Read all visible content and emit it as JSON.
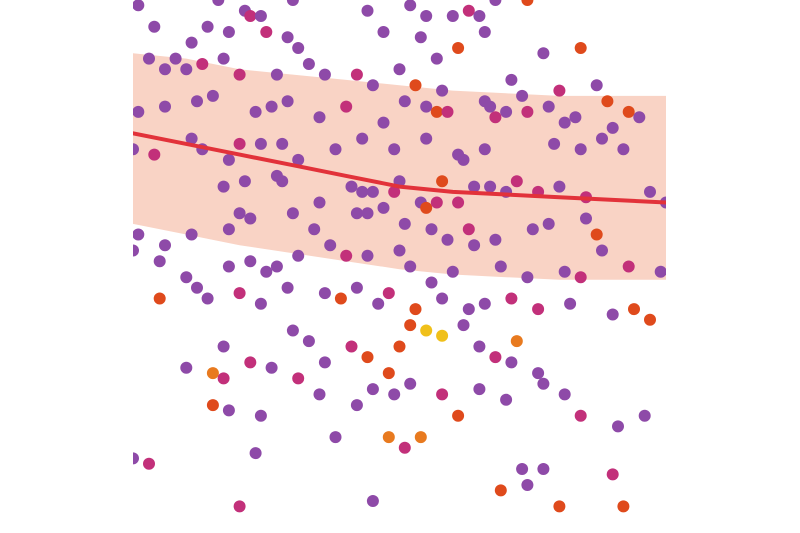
{
  "chart_data": {
    "type": "scatter",
    "title": "",
    "xlabel": "",
    "ylabel": "",
    "grid": false,
    "legend": "none",
    "xlim": [
      0,
      100
    ],
    "ylim": [
      0,
      100
    ],
    "colors": {
      "purple": "#8e4aa8",
      "magenta": "#c2307a",
      "orange_red": "#df4a1c",
      "orange": "#e87a1f",
      "yellow": "#f0c01a",
      "trend": "#e2323a",
      "band": "#f9d3c5"
    },
    "trend": {
      "x": [
        0,
        10,
        20,
        30,
        40,
        50,
        60,
        70,
        80,
        90,
        100
      ],
      "y": [
        75,
        73,
        71,
        69,
        67,
        65,
        64,
        63.5,
        63,
        62.5,
        62
      ]
    },
    "band": {
      "x": [
        0,
        10,
        20,
        30,
        40,
        50,
        60,
        70,
        80,
        90,
        100
      ],
      "upper": [
        90,
        89,
        87,
        86,
        85,
        84,
        83,
        82.5,
        82,
        82,
        82
      ],
      "lower": [
        58,
        56,
        54,
        52.5,
        51,
        49.5,
        48.5,
        48,
        47.5,
        47.5,
        47.5
      ]
    },
    "points": [
      {
        "x": 1,
        "y": 99,
        "c": "purple"
      },
      {
        "x": 16,
        "y": 100,
        "c": "purple"
      },
      {
        "x": 21,
        "y": 98,
        "c": "purple"
      },
      {
        "x": 22,
        "y": 97,
        "c": "magenta"
      },
      {
        "x": 24,
        "y": 97,
        "c": "purple"
      },
      {
        "x": 44,
        "y": 98,
        "c": "purple"
      },
      {
        "x": 52,
        "y": 99,
        "c": "purple"
      },
      {
        "x": 55,
        "y": 97,
        "c": "purple"
      },
      {
        "x": 60,
        "y": 97,
        "c": "purple"
      },
      {
        "x": 63,
        "y": 98,
        "c": "magenta"
      },
      {
        "x": 65,
        "y": 97,
        "c": "purple"
      },
      {
        "x": 68,
        "y": 100,
        "c": "purple"
      },
      {
        "x": 74,
        "y": 100,
        "c": "orange_red"
      },
      {
        "x": 30,
        "y": 100,
        "c": "purple"
      },
      {
        "x": 4,
        "y": 95,
        "c": "purple"
      },
      {
        "x": 11,
        "y": 92,
        "c": "purple"
      },
      {
        "x": 14,
        "y": 95,
        "c": "purple"
      },
      {
        "x": 18,
        "y": 94,
        "c": "purple"
      },
      {
        "x": 25,
        "y": 94,
        "c": "magenta"
      },
      {
        "x": 29,
        "y": 93,
        "c": "purple"
      },
      {
        "x": 31,
        "y": 91,
        "c": "purple"
      },
      {
        "x": 47,
        "y": 94,
        "c": "purple"
      },
      {
        "x": 54,
        "y": 93,
        "c": "purple"
      },
      {
        "x": 57,
        "y": 89,
        "c": "purple"
      },
      {
        "x": 61,
        "y": 91,
        "c": "orange_red"
      },
      {
        "x": 66,
        "y": 94,
        "c": "purple"
      },
      {
        "x": 77,
        "y": 90,
        "c": "purple"
      },
      {
        "x": 84,
        "y": 91,
        "c": "orange_red"
      },
      {
        "x": 3,
        "y": 89,
        "c": "purple"
      },
      {
        "x": 6,
        "y": 87,
        "c": "purple"
      },
      {
        "x": 8,
        "y": 89,
        "c": "purple"
      },
      {
        "x": 10,
        "y": 87,
        "c": "purple"
      },
      {
        "x": 13,
        "y": 88,
        "c": "magenta"
      },
      {
        "x": 17,
        "y": 89,
        "c": "purple"
      },
      {
        "x": 20,
        "y": 86,
        "c": "magenta"
      },
      {
        "x": 27,
        "y": 86,
        "c": "purple"
      },
      {
        "x": 33,
        "y": 88,
        "c": "purple"
      },
      {
        "x": 36,
        "y": 86,
        "c": "purple"
      },
      {
        "x": 42,
        "y": 86,
        "c": "magenta"
      },
      {
        "x": 45,
        "y": 84,
        "c": "purple"
      },
      {
        "x": 50,
        "y": 87,
        "c": "purple"
      },
      {
        "x": 53,
        "y": 84,
        "c": "orange_red"
      },
      {
        "x": 58,
        "y": 83,
        "c": "purple"
      },
      {
        "x": 71,
        "y": 85,
        "c": "purple"
      },
      {
        "x": 73,
        "y": 82,
        "c": "purple"
      },
      {
        "x": 80,
        "y": 83,
        "c": "magenta"
      },
      {
        "x": 87,
        "y": 84,
        "c": "purple"
      },
      {
        "x": 89,
        "y": 81,
        "c": "orange_red"
      },
      {
        "x": 1,
        "y": 79,
        "c": "purple"
      },
      {
        "x": 6,
        "y": 80,
        "c": "purple"
      },
      {
        "x": 12,
        "y": 81,
        "c": "purple"
      },
      {
        "x": 15,
        "y": 82,
        "c": "purple"
      },
      {
        "x": 23,
        "y": 79,
        "c": "purple"
      },
      {
        "x": 26,
        "y": 80,
        "c": "purple"
      },
      {
        "x": 29,
        "y": 81,
        "c": "purple"
      },
      {
        "x": 35,
        "y": 78,
        "c": "purple"
      },
      {
        "x": 40,
        "y": 80,
        "c": "magenta"
      },
      {
        "x": 47,
        "y": 77,
        "c": "purple"
      },
      {
        "x": 51,
        "y": 81,
        "c": "purple"
      },
      {
        "x": 55,
        "y": 80,
        "c": "purple"
      },
      {
        "x": 57,
        "y": 79,
        "c": "orange_red"
      },
      {
        "x": 59,
        "y": 79,
        "c": "magenta"
      },
      {
        "x": 66,
        "y": 81,
        "c": "purple"
      },
      {
        "x": 68,
        "y": 78,
        "c": "magenta"
      },
      {
        "x": 67,
        "y": 80,
        "c": "purple"
      },
      {
        "x": 70,
        "y": 79,
        "c": "purple"
      },
      {
        "x": 74,
        "y": 79,
        "c": "magenta"
      },
      {
        "x": 78,
        "y": 80,
        "c": "purple"
      },
      {
        "x": 81,
        "y": 77,
        "c": "purple"
      },
      {
        "x": 83,
        "y": 78,
        "c": "purple"
      },
      {
        "x": 90,
        "y": 76,
        "c": "purple"
      },
      {
        "x": 93,
        "y": 79,
        "c": "orange_red"
      },
      {
        "x": 0,
        "y": 72,
        "c": "purple"
      },
      {
        "x": 4,
        "y": 71,
        "c": "magenta"
      },
      {
        "x": 11,
        "y": 74,
        "c": "purple"
      },
      {
        "x": 13,
        "y": 72,
        "c": "purple"
      },
      {
        "x": 18,
        "y": 70,
        "c": "purple"
      },
      {
        "x": 20,
        "y": 73,
        "c": "magenta"
      },
      {
        "x": 24,
        "y": 73,
        "c": "purple"
      },
      {
        "x": 28,
        "y": 73,
        "c": "purple"
      },
      {
        "x": 31,
        "y": 70,
        "c": "purple"
      },
      {
        "x": 38,
        "y": 72,
        "c": "purple"
      },
      {
        "x": 43,
        "y": 74,
        "c": "purple"
      },
      {
        "x": 49,
        "y": 72,
        "c": "purple"
      },
      {
        "x": 55,
        "y": 74,
        "c": "purple"
      },
      {
        "x": 61,
        "y": 71,
        "c": "purple"
      },
      {
        "x": 62,
        "y": 70,
        "c": "purple"
      },
      {
        "x": 66,
        "y": 72,
        "c": "purple"
      },
      {
        "x": 79,
        "y": 73,
        "c": "purple"
      },
      {
        "x": 84,
        "y": 72,
        "c": "purple"
      },
      {
        "x": 88,
        "y": 74,
        "c": "purple"
      },
      {
        "x": 92,
        "y": 72,
        "c": "purple"
      },
      {
        "x": 95,
        "y": 78,
        "c": "purple"
      },
      {
        "x": 17,
        "y": 65,
        "c": "purple"
      },
      {
        "x": 21,
        "y": 66,
        "c": "purple"
      },
      {
        "x": 27,
        "y": 67,
        "c": "purple"
      },
      {
        "x": 28,
        "y": 66,
        "c": "purple"
      },
      {
        "x": 35,
        "y": 62,
        "c": "purple"
      },
      {
        "x": 41,
        "y": 65,
        "c": "purple"
      },
      {
        "x": 43,
        "y": 64,
        "c": "purple"
      },
      {
        "x": 45,
        "y": 64,
        "c": "purple"
      },
      {
        "x": 49,
        "y": 64,
        "c": "magenta"
      },
      {
        "x": 50,
        "y": 66,
        "c": "purple"
      },
      {
        "x": 54,
        "y": 62,
        "c": "purple"
      },
      {
        "x": 55,
        "y": 61,
        "c": "orange_red"
      },
      {
        "x": 57,
        "y": 62,
        "c": "magenta"
      },
      {
        "x": 58,
        "y": 66,
        "c": "orange_red"
      },
      {
        "x": 61,
        "y": 62,
        "c": "magenta"
      },
      {
        "x": 64,
        "y": 65,
        "c": "purple"
      },
      {
        "x": 67,
        "y": 65,
        "c": "purple"
      },
      {
        "x": 70,
        "y": 64,
        "c": "purple"
      },
      {
        "x": 72,
        "y": 66,
        "c": "magenta"
      },
      {
        "x": 76,
        "y": 64,
        "c": "magenta"
      },
      {
        "x": 80,
        "y": 65,
        "c": "purple"
      },
      {
        "x": 85,
        "y": 63,
        "c": "magenta"
      },
      {
        "x": 97,
        "y": 64,
        "c": "purple"
      },
      {
        "x": 100,
        "y": 62,
        "c": "purple"
      },
      {
        "x": 6,
        "y": 54,
        "c": "purple"
      },
      {
        "x": 11,
        "y": 56,
        "c": "purple"
      },
      {
        "x": 18,
        "y": 57,
        "c": "purple"
      },
      {
        "x": 20,
        "y": 60,
        "c": "purple"
      },
      {
        "x": 22,
        "y": 59,
        "c": "purple"
      },
      {
        "x": 30,
        "y": 60,
        "c": "purple"
      },
      {
        "x": 34,
        "y": 57,
        "c": "purple"
      },
      {
        "x": 42,
        "y": 60,
        "c": "purple"
      },
      {
        "x": 44,
        "y": 60,
        "c": "purple"
      },
      {
        "x": 47,
        "y": 61,
        "c": "purple"
      },
      {
        "x": 51,
        "y": 58,
        "c": "purple"
      },
      {
        "x": 56,
        "y": 57,
        "c": "purple"
      },
      {
        "x": 59,
        "y": 55,
        "c": "purple"
      },
      {
        "x": 63,
        "y": 57,
        "c": "magenta"
      },
      {
        "x": 68,
        "y": 55,
        "c": "purple"
      },
      {
        "x": 75,
        "y": 57,
        "c": "purple"
      },
      {
        "x": 78,
        "y": 58,
        "c": "purple"
      },
      {
        "x": 85,
        "y": 59,
        "c": "purple"
      },
      {
        "x": 87,
        "y": 56,
        "c": "orange_red"
      },
      {
        "x": 0,
        "y": 53,
        "c": "purple"
      },
      {
        "x": 1,
        "y": 56,
        "c": "purple"
      },
      {
        "x": 5,
        "y": 51,
        "c": "purple"
      },
      {
        "x": 10,
        "y": 48,
        "c": "purple"
      },
      {
        "x": 18,
        "y": 50,
        "c": "purple"
      },
      {
        "x": 22,
        "y": 51,
        "c": "purple"
      },
      {
        "x": 25,
        "y": 49,
        "c": "purple"
      },
      {
        "x": 27,
        "y": 50,
        "c": "purple"
      },
      {
        "x": 31,
        "y": 52,
        "c": "purple"
      },
      {
        "x": 37,
        "y": 54,
        "c": "purple"
      },
      {
        "x": 40,
        "y": 52,
        "c": "magenta"
      },
      {
        "x": 44,
        "y": 52,
        "c": "purple"
      },
      {
        "x": 50,
        "y": 53,
        "c": "purple"
      },
      {
        "x": 52,
        "y": 50,
        "c": "purple"
      },
      {
        "x": 56,
        "y": 47,
        "c": "purple"
      },
      {
        "x": 60,
        "y": 49,
        "c": "purple"
      },
      {
        "x": 64,
        "y": 54,
        "c": "purple"
      },
      {
        "x": 69,
        "y": 50,
        "c": "purple"
      },
      {
        "x": 74,
        "y": 48,
        "c": "purple"
      },
      {
        "x": 81,
        "y": 49,
        "c": "purple"
      },
      {
        "x": 84,
        "y": 48,
        "c": "magenta"
      },
      {
        "x": 88,
        "y": 53,
        "c": "purple"
      },
      {
        "x": 93,
        "y": 50,
        "c": "magenta"
      },
      {
        "x": 99,
        "y": 49,
        "c": "purple"
      },
      {
        "x": 5,
        "y": 44,
        "c": "orange_red"
      },
      {
        "x": 12,
        "y": 46,
        "c": "purple"
      },
      {
        "x": 14,
        "y": 44,
        "c": "purple"
      },
      {
        "x": 20,
        "y": 45,
        "c": "magenta"
      },
      {
        "x": 24,
        "y": 43,
        "c": "purple"
      },
      {
        "x": 29,
        "y": 46,
        "c": "purple"
      },
      {
        "x": 36,
        "y": 45,
        "c": "purple"
      },
      {
        "x": 39,
        "y": 44,
        "c": "orange_red"
      },
      {
        "x": 42,
        "y": 46,
        "c": "purple"
      },
      {
        "x": 46,
        "y": 43,
        "c": "purple"
      },
      {
        "x": 48,
        "y": 45,
        "c": "magenta"
      },
      {
        "x": 53,
        "y": 42,
        "c": "orange_red"
      },
      {
        "x": 58,
        "y": 44,
        "c": "purple"
      },
      {
        "x": 63,
        "y": 42,
        "c": "purple"
      },
      {
        "x": 66,
        "y": 43,
        "c": "purple"
      },
      {
        "x": 71,
        "y": 44,
        "c": "magenta"
      },
      {
        "x": 76,
        "y": 42,
        "c": "magenta"
      },
      {
        "x": 82,
        "y": 43,
        "c": "purple"
      },
      {
        "x": 90,
        "y": 41,
        "c": "purple"
      },
      {
        "x": 94,
        "y": 42,
        "c": "orange_red"
      },
      {
        "x": 97,
        "y": 40,
        "c": "orange_red"
      },
      {
        "x": 17,
        "y": 35,
        "c": "purple"
      },
      {
        "x": 22,
        "y": 32,
        "c": "magenta"
      },
      {
        "x": 30,
        "y": 38,
        "c": "purple"
      },
      {
        "x": 33,
        "y": 36,
        "c": "purple"
      },
      {
        "x": 36,
        "y": 32,
        "c": "purple"
      },
      {
        "x": 41,
        "y": 35,
        "c": "magenta"
      },
      {
        "x": 44,
        "y": 33,
        "c": "orange_red"
      },
      {
        "x": 48,
        "y": 30,
        "c": "orange_red"
      },
      {
        "x": 50,
        "y": 35,
        "c": "orange_red"
      },
      {
        "x": 52,
        "y": 39,
        "c": "orange_red"
      },
      {
        "x": 55,
        "y": 38,
        "c": "yellow"
      },
      {
        "x": 58,
        "y": 37,
        "c": "yellow"
      },
      {
        "x": 62,
        "y": 39,
        "c": "purple"
      },
      {
        "x": 65,
        "y": 35,
        "c": "purple"
      },
      {
        "x": 68,
        "y": 33,
        "c": "magenta"
      },
      {
        "x": 71,
        "y": 32,
        "c": "purple"
      },
      {
        "x": 72,
        "y": 36,
        "c": "orange"
      },
      {
        "x": 76,
        "y": 30,
        "c": "purple"
      },
      {
        "x": 10,
        "y": 31,
        "c": "purple"
      },
      {
        "x": 15,
        "y": 30,
        "c": "orange"
      },
      {
        "x": 17,
        "y": 29,
        "c": "magenta"
      },
      {
        "x": 26,
        "y": 31,
        "c": "purple"
      },
      {
        "x": 31,
        "y": 29,
        "c": "magenta"
      },
      {
        "x": 35,
        "y": 26,
        "c": "purple"
      },
      {
        "x": 45,
        "y": 27,
        "c": "purple"
      },
      {
        "x": 49,
        "y": 26,
        "c": "purple"
      },
      {
        "x": 52,
        "y": 28,
        "c": "purple"
      },
      {
        "x": 58,
        "y": 26,
        "c": "magenta"
      },
      {
        "x": 61,
        "y": 22,
        "c": "orange_red"
      },
      {
        "x": 65,
        "y": 27,
        "c": "purple"
      },
      {
        "x": 70,
        "y": 25,
        "c": "purple"
      },
      {
        "x": 77,
        "y": 28,
        "c": "purple"
      },
      {
        "x": 81,
        "y": 26,
        "c": "purple"
      },
      {
        "x": 84,
        "y": 22,
        "c": "magenta"
      },
      {
        "x": 91,
        "y": 20,
        "c": "purple"
      },
      {
        "x": 96,
        "y": 22,
        "c": "purple"
      },
      {
        "x": 15,
        "y": 24,
        "c": "orange_red"
      },
      {
        "x": 18,
        "y": 23,
        "c": "purple"
      },
      {
        "x": 24,
        "y": 22,
        "c": "purple"
      },
      {
        "x": 42,
        "y": 24,
        "c": "purple"
      },
      {
        "x": 48,
        "y": 18,
        "c": "orange"
      },
      {
        "x": 51,
        "y": 16,
        "c": "magenta"
      },
      {
        "x": 54,
        "y": 18,
        "c": "orange"
      },
      {
        "x": 0,
        "y": 14,
        "c": "purple"
      },
      {
        "x": 3,
        "y": 13,
        "c": "magenta"
      },
      {
        "x": 23,
        "y": 15,
        "c": "purple"
      },
      {
        "x": 38,
        "y": 18,
        "c": "purple"
      },
      {
        "x": 73,
        "y": 12,
        "c": "purple"
      },
      {
        "x": 77,
        "y": 12,
        "c": "purple"
      },
      {
        "x": 90,
        "y": 11,
        "c": "magenta"
      },
      {
        "x": 69,
        "y": 8,
        "c": "orange_red"
      },
      {
        "x": 74,
        "y": 9,
        "c": "purple"
      },
      {
        "x": 20,
        "y": 5,
        "c": "magenta"
      },
      {
        "x": 45,
        "y": 6,
        "c": "purple"
      },
      {
        "x": 80,
        "y": 5,
        "c": "orange_red"
      },
      {
        "x": 92,
        "y": 5,
        "c": "orange_red"
      }
    ]
  }
}
